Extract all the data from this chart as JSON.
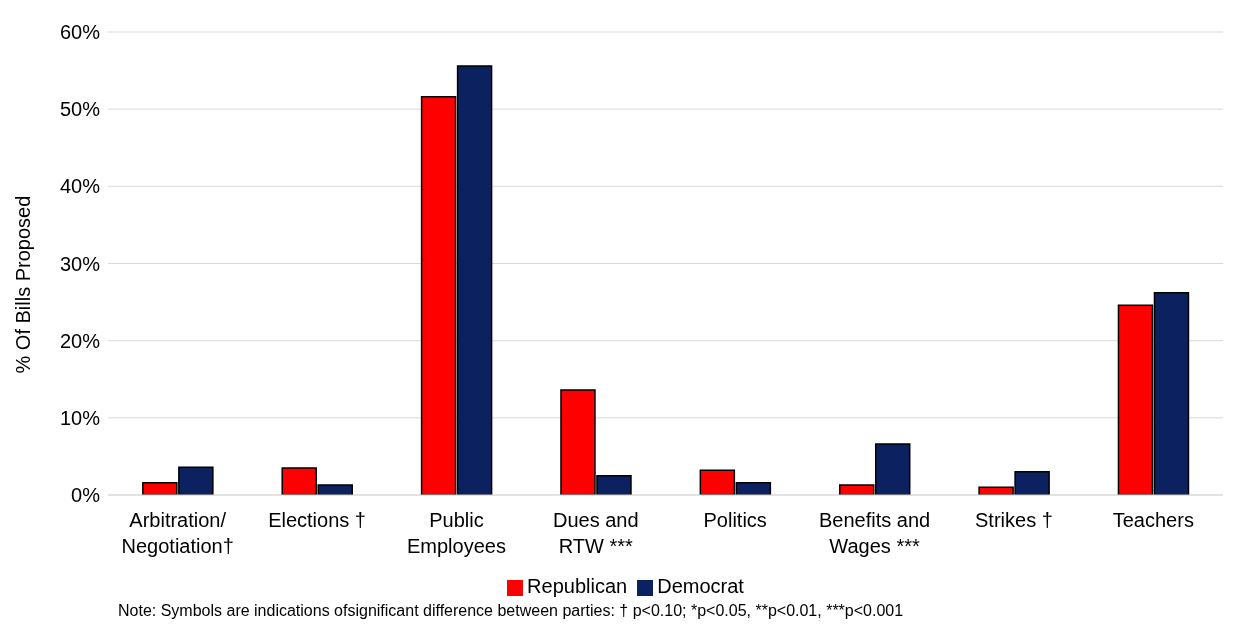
{
  "chart_data": {
    "type": "bar",
    "ylabel": "% Of Bills Proposed",
    "categories": [
      "Arbitration/ Negotiation†",
      "Elections †",
      "Public Employees",
      "Dues and RTW ***",
      "Politics",
      "Benefits and Wages ***",
      "Strikes †",
      "Teachers"
    ],
    "series": [
      {
        "name": "Republican",
        "color": "#ff0000",
        "values": [
          1.6,
          3.5,
          51.6,
          13.6,
          3.2,
          1.3,
          1.0,
          24.6
        ]
      },
      {
        "name": "Democrat",
        "color": "#0c2260",
        "values": [
          3.6,
          1.3,
          55.6,
          2.5,
          1.6,
          6.6,
          3.0,
          26.2
        ]
      }
    ],
    "ylim": [
      0,
      60
    ],
    "yticks": [
      {
        "value": 0,
        "label": "0%"
      },
      {
        "value": 10,
        "label": "10%"
      },
      {
        "value": 20,
        "label": "20%"
      },
      {
        "value": 30,
        "label": "30%"
      },
      {
        "value": 40,
        "label": "40%"
      },
      {
        "value": 50,
        "label": "50%"
      },
      {
        "value": 60,
        "label": "60%"
      }
    ],
    "grid": "y",
    "legend": "bottom",
    "annotations": [
      "Note:  Symbols are indications ofsignificant difference between parties: † p<0.10; *p<0.05, **p<0.01, ***p<0.001"
    ]
  }
}
